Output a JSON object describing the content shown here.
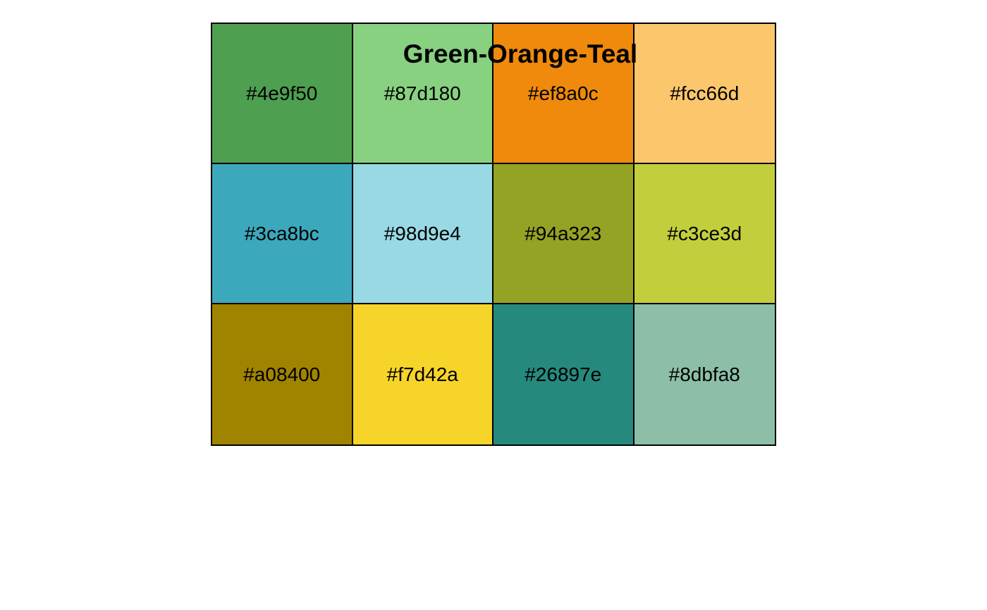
{
  "title": "Green-Orange-Teal",
  "swatches": [
    {
      "hex": "#4e9f50",
      "label": "#4e9f50"
    },
    {
      "hex": "#87d180",
      "label": "#87d180"
    },
    {
      "hex": "#ef8a0c",
      "label": "#ef8a0c"
    },
    {
      "hex": "#fcc66d",
      "label": "#fcc66d"
    },
    {
      "hex": "#3ca8bc",
      "label": "#3ca8bc"
    },
    {
      "hex": "#98d9e4",
      "label": "#98d9e4"
    },
    {
      "hex": "#94a323",
      "label": "#94a323"
    },
    {
      "hex": "#c3ce3d",
      "label": "#c3ce3d"
    },
    {
      "hex": "#a08400",
      "label": "#a08400"
    },
    {
      "hex": "#f7d42a",
      "label": "#f7d42a"
    },
    {
      "hex": "#26897e",
      "label": "#26897e"
    },
    {
      "hex": "#8dbfa8",
      "label": "#8dbfa8"
    }
  ]
}
